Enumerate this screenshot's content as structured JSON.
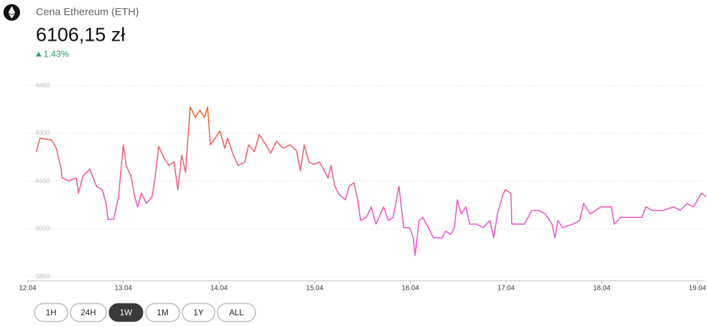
{
  "chart_data": {
    "type": "line",
    "title": "Cena Ethereum (ETH)",
    "subtitle": "6106,15 zł",
    "change": "1.43%",
    "change_color": "#2e9e6a",
    "x": [
      12.09,
      12.13,
      12.25,
      12.3,
      12.35,
      12.36,
      12.43,
      12.51,
      12.53,
      12.58,
      12.65,
      12.72,
      12.78,
      12.82,
      12.84,
      12.9,
      12.95,
      13.0,
      13.03,
      13.08,
      13.12,
      13.15,
      13.19,
      13.24,
      13.3,
      13.33,
      13.37,
      13.43,
      13.48,
      13.53,
      13.57,
      13.61,
      13.65,
      13.67,
      13.7,
      13.75,
      13.8,
      13.85,
      13.88,
      13.91,
      13.96,
      14.01,
      14.06,
      14.09,
      14.15,
      14.2,
      14.27,
      14.31,
      14.37,
      14.42,
      14.49,
      14.54,
      14.6,
      14.67,
      14.74,
      14.81,
      14.85,
      14.89,
      14.94,
      14.99,
      15.05,
      15.09,
      15.14,
      15.17,
      15.21,
      15.26,
      15.32,
      15.36,
      15.41,
      15.45,
      15.48,
      15.54,
      15.59,
      15.64,
      15.72,
      15.77,
      15.82,
      15.88,
      15.93,
      15.99,
      16.03,
      16.05,
      16.09,
      16.13,
      16.18,
      16.24,
      16.33,
      16.37,
      16.42,
      16.46,
      16.49,
      16.53,
      16.58,
      16.62,
      16.69,
      16.76,
      16.83,
      16.87,
      16.91,
      16.96,
      16.99,
      17.05,
      17.06,
      17.19,
      17.27,
      17.34,
      17.41,
      17.48,
      17.51,
      17.54,
      17.59,
      17.7,
      17.77,
      17.81,
      17.88,
      17.99,
      18.1,
      18.13,
      18.2,
      18.42,
      18.46,
      18.53,
      18.64,
      18.75,
      18.82,
      18.89,
      18.96,
      19.04,
      19.09
    ],
    "series": [
      {
        "name": "ETH",
        "color": "#f2661f",
        "color_low": "#ee52dc",
        "values": [
          6242,
          6285,
          6279,
          6253,
          6188,
          6160,
          6151,
          6160,
          6112,
          6166,
          6188,
          6134,
          6123,
          6080,
          6030,
          6030,
          6101,
          6264,
          6199,
          6166,
          6101,
          6069,
          6112,
          6080,
          6101,
          6156,
          6259,
          6220,
          6199,
          6210,
          6123,
          6231,
          6177,
          6264,
          6383,
          6350,
          6372,
          6350,
          6383,
          6264,
          6285,
          6307,
          6253,
          6285,
          6231,
          6199,
          6210,
          6264,
          6242,
          6296,
          6264,
          6238,
          6275,
          6253,
          6264,
          6246,
          6182,
          6264,
          6210,
          6203,
          6210,
          6188,
          6160,
          6199,
          6134,
          6106,
          6091,
          6134,
          6145,
          6091,
          6026,
          6036,
          6069,
          6015,
          6069,
          6026,
          6036,
          6134,
          6004,
          6004,
          5972,
          5917,
          6026,
          6036,
          6008,
          5972,
          5972,
          5993,
          5982,
          6004,
          6091,
          6047,
          6069,
          6015,
          6015,
          6004,
          6026,
          5972,
          6047,
          6101,
          6123,
          6112,
          6015,
          6015,
          6058,
          6058,
          6047,
          6015,
          5972,
          6026,
          6004,
          6015,
          6026,
          6080,
          6047,
          6069,
          6069,
          6015,
          6036,
          6036,
          6069,
          6058,
          6058,
          6069,
          6058,
          6080,
          6069,
          6112,
          6101
        ]
      }
    ],
    "xlim": [
      12,
      19.09
    ],
    "xticks": [
      {
        "value": 12,
        "label": "12.04"
      },
      {
        "value": 13,
        "label": "13.04"
      },
      {
        "value": 14,
        "label": "14.04"
      },
      {
        "value": 15,
        "label": "15.04"
      },
      {
        "value": 16,
        "label": "16.04"
      },
      {
        "value": 17,
        "label": "17.04"
      },
      {
        "value": 18,
        "label": "18.04"
      },
      {
        "value": 19,
        "label": "19.04"
      }
    ],
    "ylim": [
      5850,
      6450
    ],
    "yticks": [
      5850,
      6000,
      6150,
      6300,
      6450
    ],
    "grid": true
  },
  "range_buttons": [
    "1H",
    "24H",
    "1W",
    "1M",
    "1Y",
    "ALL"
  ],
  "selected_range": 2
}
